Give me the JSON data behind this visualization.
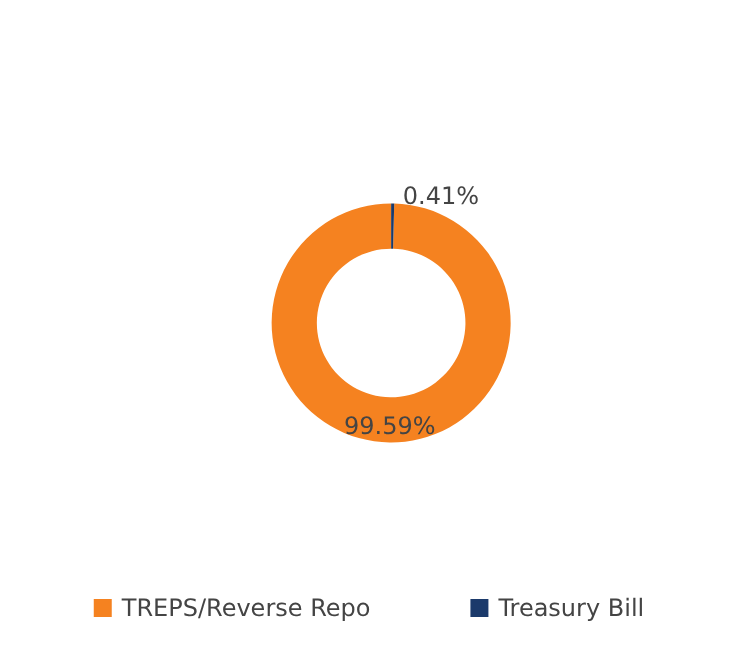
{
  "chart_data": {
    "type": "donut",
    "categories": [
      "TREPS/Reverse Repo",
      "Treasury Bill"
    ],
    "values": [
      99.59,
      0.41
    ],
    "colors": [
      "#f58220",
      "#1b3a6b"
    ],
    "value_labels": [
      "99.59%",
      "0.41%"
    ],
    "legend": "bottom"
  }
}
